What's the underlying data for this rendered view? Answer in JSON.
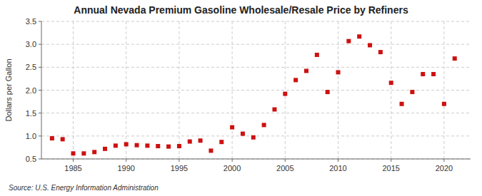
{
  "chart_data": {
    "type": "scatter",
    "title": "Annual Nevada Premium Gasoline Wholesale/Resale Price by Refiners",
    "ylabel": "Dollars per Gallon",
    "source": "Source: U.S. Energy Information Administration",
    "x": [
      1983,
      1984,
      1985,
      1986,
      1987,
      1988,
      1989,
      1990,
      1991,
      1992,
      1993,
      1994,
      1995,
      1996,
      1997,
      1998,
      1999,
      2000,
      2001,
      2002,
      2003,
      2004,
      2005,
      2006,
      2007,
      2008,
      2009,
      2010,
      2011,
      2012,
      2013,
      2014,
      2015,
      2016,
      2017,
      2018,
      2019,
      2020,
      2021
    ],
    "values": [
      0.95,
      0.93,
      0.62,
      0.62,
      0.65,
      0.72,
      0.79,
      0.82,
      0.8,
      0.79,
      0.78,
      0.77,
      0.78,
      0.88,
      0.9,
      0.68,
      0.87,
      1.19,
      1.05,
      0.97,
      1.24,
      1.58,
      1.92,
      2.22,
      2.42,
      2.77,
      1.96,
      2.39,
      3.07,
      3.17,
      2.98,
      2.83,
      2.16,
      1.7,
      1.96,
      2.35,
      2.35,
      1.7,
      2.69
    ],
    "color": "#cc1111",
    "marker": "square",
    "xlim": [
      1982,
      2022.5
    ],
    "ylim": [
      0.5,
      3.5
    ],
    "xticks": [
      1985,
      1990,
      1995,
      2000,
      2005,
      2010,
      2015,
      2020
    ],
    "yticks": [
      0.5,
      {
        "value": 1.0,
        "label": "1.0"
      },
      1.5,
      {
        "value": 2.0,
        "label": "2.0"
      },
      2.5,
      {
        "value": 3.0,
        "label": "3.0"
      },
      3.5
    ],
    "grid": true
  }
}
